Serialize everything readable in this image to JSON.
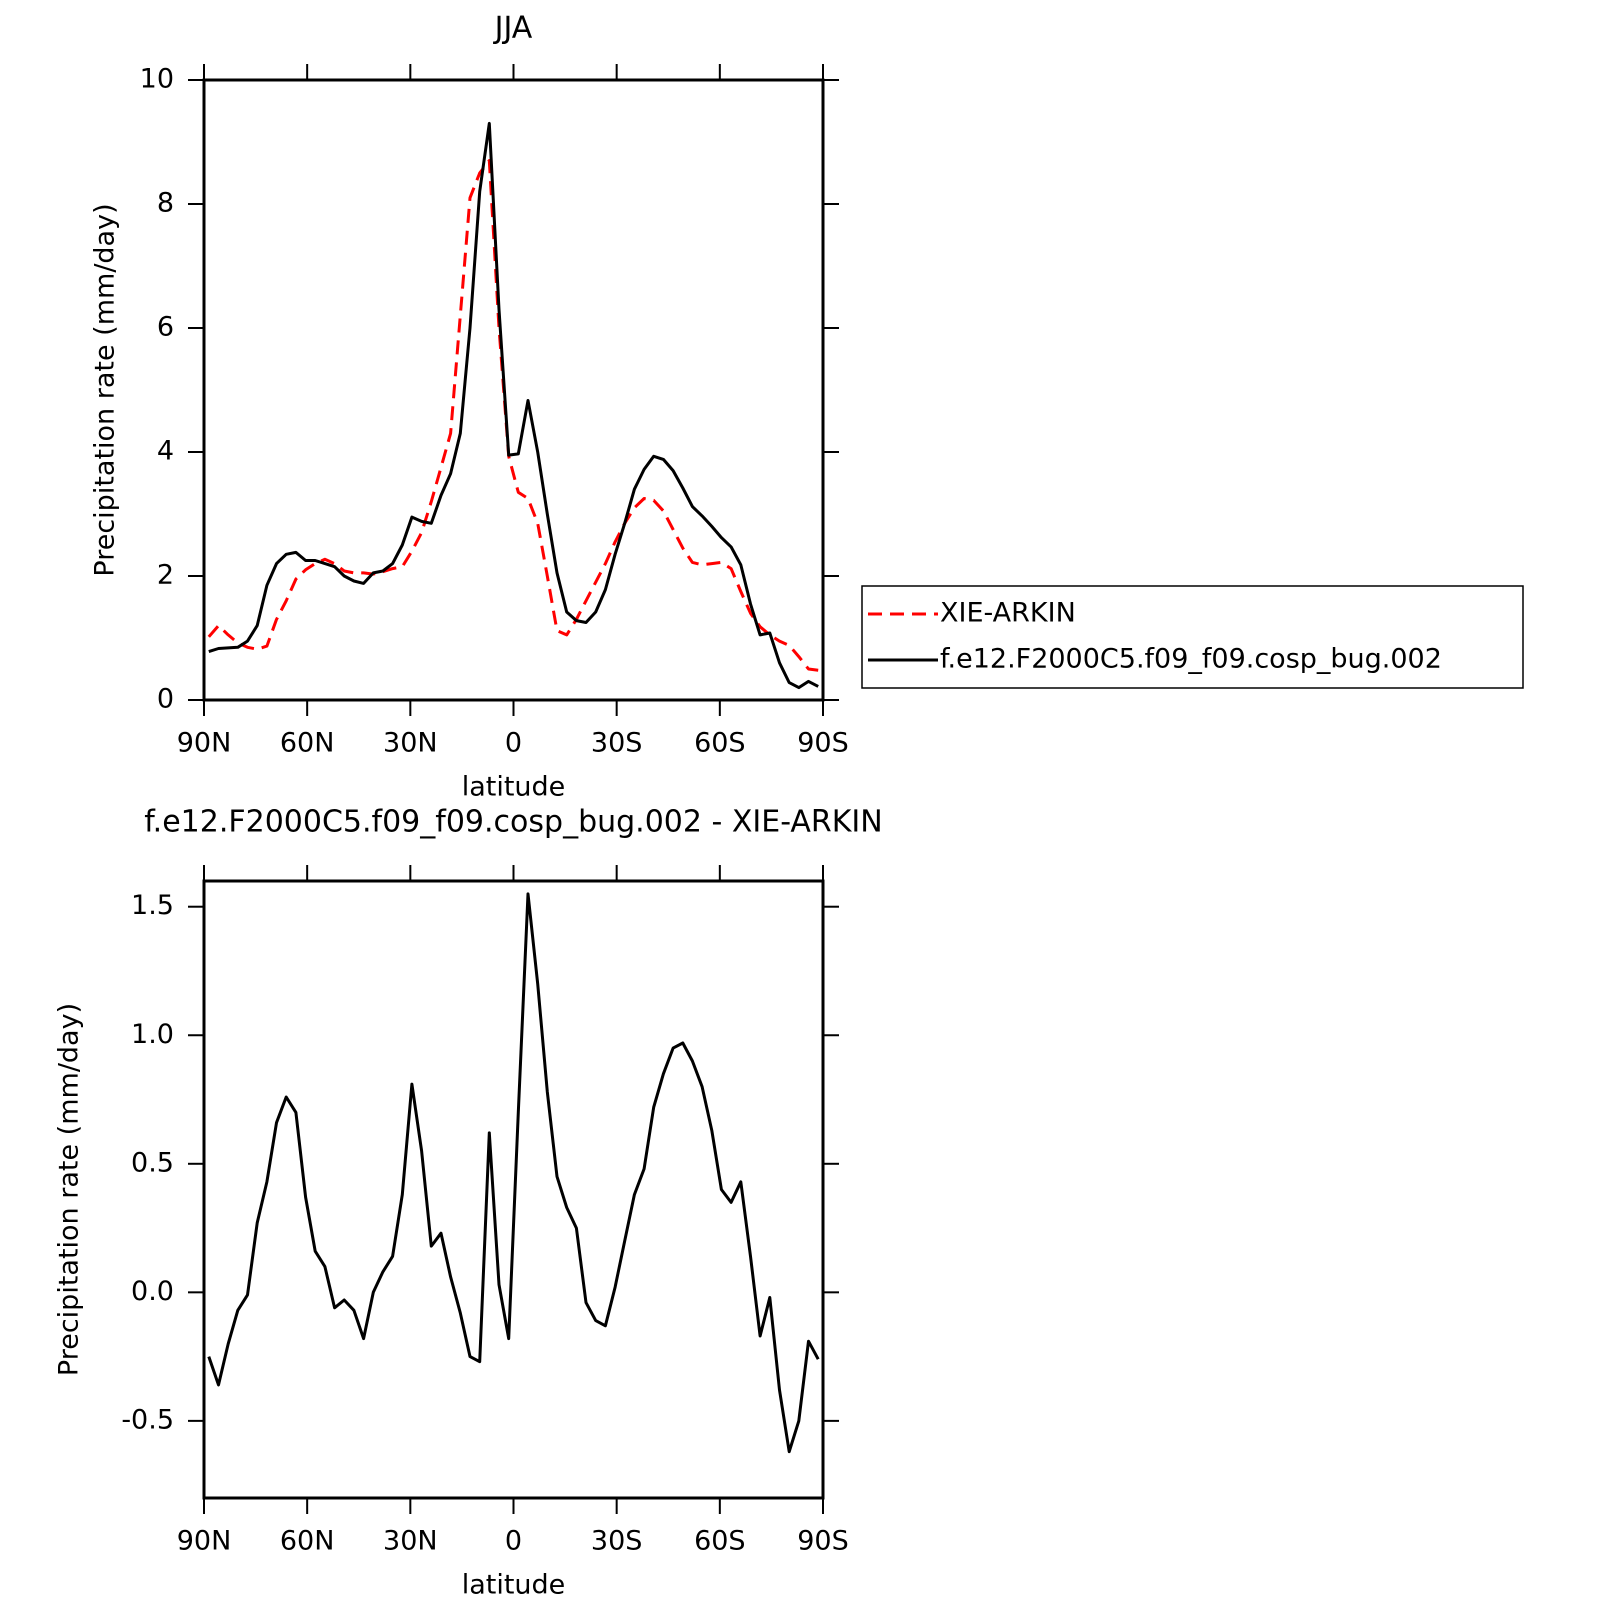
{
  "chart_data": [
    {
      "type": "line",
      "title": "JJA",
      "x_label": "latitude",
      "y_label": "Precipitation rate (mm/day)",
      "x": [
        88.59,
        85.78,
        82.97,
        80.16,
        77.34,
        74.53,
        71.72,
        68.91,
        66.09,
        63.28,
        60.47,
        57.66,
        54.84,
        52.03,
        49.22,
        46.41,
        43.59,
        40.78,
        37.97,
        35.16,
        32.34,
        29.53,
        26.72,
        23.91,
        21.09,
        18.28,
        15.47,
        12.66,
        9.84,
        7.03,
        4.22,
        1.41,
        -1.41,
        -4.22,
        -7.03,
        -9.84,
        -12.66,
        -15.47,
        -18.28,
        -21.09,
        -23.91,
        -26.72,
        -29.53,
        -32.34,
        -35.16,
        -37.97,
        -40.78,
        -43.59,
        -46.41,
        -49.22,
        -52.03,
        -54.84,
        -57.66,
        -60.47,
        -63.28,
        -66.09,
        -68.91,
        -71.72,
        -74.53,
        -77.34,
        -80.16,
        -82.97,
        -85.78,
        -88.59
      ],
      "xlim": [
        90,
        -90
      ],
      "xticks": [
        {
          "value": 90,
          "label": "90N"
        },
        {
          "value": 60,
          "label": "60N"
        },
        {
          "value": 30,
          "label": "30N"
        },
        0,
        {
          "value": -30,
          "label": "30S"
        },
        {
          "value": -60,
          "label": "60S"
        },
        {
          "value": -90,
          "label": "90S"
        }
      ],
      "ylim": [
        0,
        10
      ],
      "yticks": [
        0,
        2,
        4,
        6,
        8,
        10
      ],
      "legend": "right",
      "series": [
        {
          "name": "XIE-ARKIN",
          "color": "#ff0000",
          "dash": true,
          "values": [
            1.02,
            1.2,
            1.05,
            0.92,
            0.85,
            0.82,
            0.87,
            1.3,
            1.6,
            1.95,
            2.1,
            2.2,
            2.27,
            2.2,
            2.08,
            2.05,
            2.05,
            2.03,
            2.07,
            2.12,
            2.15,
            2.4,
            2.7,
            3.2,
            3.75,
            4.3,
            6.2,
            8.1,
            8.5,
            8.7,
            6.0,
            3.93,
            3.35,
            3.25,
            2.85,
            2.0,
            1.12,
            1.05,
            1.3,
            1.6,
            1.9,
            2.2,
            2.55,
            2.85,
            3.1,
            3.25,
            3.22,
            3.05,
            2.75,
            2.45,
            2.22,
            2.18,
            2.2,
            2.22,
            2.12,
            1.75,
            1.4,
            1.18,
            1.05,
            0.95,
            0.88,
            0.7,
            0.5,
            0.48
          ]
        },
        {
          "name": "f.e12.F2000C5.f09_f09.cosp_bug.002",
          "color": "#000000",
          "dash": false,
          "values": [
            0.78,
            0.83,
            0.84,
            0.85,
            0.95,
            1.2,
            1.85,
            2.2,
            2.35,
            2.38,
            2.25,
            2.25,
            2.2,
            2.15,
            2.0,
            1.92,
            1.88,
            2.05,
            2.08,
            2.2,
            2.5,
            2.95,
            2.88,
            2.85,
            3.3,
            3.65,
            4.3,
            6.0,
            8.2,
            9.3,
            6.3,
            3.95,
            3.97,
            4.83,
            4.0,
            3.0,
            2.05,
            1.42,
            1.28,
            1.25,
            1.42,
            1.78,
            2.35,
            2.85,
            3.4,
            3.72,
            3.93,
            3.88,
            3.7,
            3.42,
            3.12,
            2.97,
            2.8,
            2.62,
            2.47,
            2.18,
            1.55,
            1.05,
            1.08,
            0.6,
            0.28,
            0.2,
            0.3,
            0.22
          ]
        }
      ]
    },
    {
      "type": "line",
      "title": "f.e12.F2000C5.f09_f09.cosp_bug.002 - XIE-ARKIN",
      "x_label": "latitude",
      "y_label": "Precipitation rate (mm/day)",
      "x": [
        88.59,
        85.78,
        82.97,
        80.16,
        77.34,
        74.53,
        71.72,
        68.91,
        66.09,
        63.28,
        60.47,
        57.66,
        54.84,
        52.03,
        49.22,
        46.41,
        43.59,
        40.78,
        37.97,
        35.16,
        32.34,
        29.53,
        26.72,
        23.91,
        21.09,
        18.28,
        15.47,
        12.66,
        9.84,
        7.03,
        4.22,
        1.41,
        -1.41,
        -4.22,
        -7.03,
        -9.84,
        -12.66,
        -15.47,
        -18.28,
        -21.09,
        -23.91,
        -26.72,
        -29.53,
        -32.34,
        -35.16,
        -37.97,
        -40.78,
        -43.59,
        -46.41,
        -49.22,
        -52.03,
        -54.84,
        -57.66,
        -60.47,
        -63.28,
        -66.09,
        -68.91,
        -71.72,
        -74.53,
        -77.34,
        -80.16,
        -82.97,
        -85.78,
        -88.59
      ],
      "xlim": [
        90,
        -90
      ],
      "xticks": [
        {
          "value": 90,
          "label": "90N"
        },
        {
          "value": 60,
          "label": "60N"
        },
        {
          "value": 30,
          "label": "30N"
        },
        0,
        {
          "value": -30,
          "label": "30S"
        },
        {
          "value": -60,
          "label": "60S"
        },
        {
          "value": -90,
          "label": "90S"
        }
      ],
      "ylim": [
        -0.8,
        1.6
      ],
      "yticks": [
        {
          "value": -0.5,
          "label": "-0.5"
        },
        {
          "value": 0,
          "label": "0.0"
        },
        0.5,
        {
          "value": 1,
          "label": "1.0"
        },
        1.5
      ],
      "series": [
        {
          "color": "#000000",
          "dash": false,
          "values": [
            -0.25,
            -0.36,
            -0.2,
            -0.07,
            -0.01,
            0.27,
            0.43,
            0.66,
            0.76,
            0.7,
            0.37,
            0.16,
            0.1,
            -0.06,
            -0.03,
            -0.07,
            -0.18,
            0.0,
            0.08,
            0.14,
            0.38,
            0.81,
            0.55,
            0.18,
            0.23,
            0.06,
            -0.08,
            -0.25,
            -0.27,
            0.62,
            0.03,
            -0.18,
            0.7,
            1.55,
            1.2,
            0.78,
            0.45,
            0.33,
            0.25,
            -0.04,
            -0.11,
            -0.13,
            0.02,
            0.2,
            0.38,
            0.48,
            0.72,
            0.85,
            0.95,
            0.97,
            0.9,
            0.8,
            0.63,
            0.4,
            0.35,
            0.43,
            0.14,
            -0.17,
            -0.02,
            -0.38,
            -0.62,
            -0.5,
            -0.19,
            -0.26
          ]
        }
      ]
    }
  ]
}
